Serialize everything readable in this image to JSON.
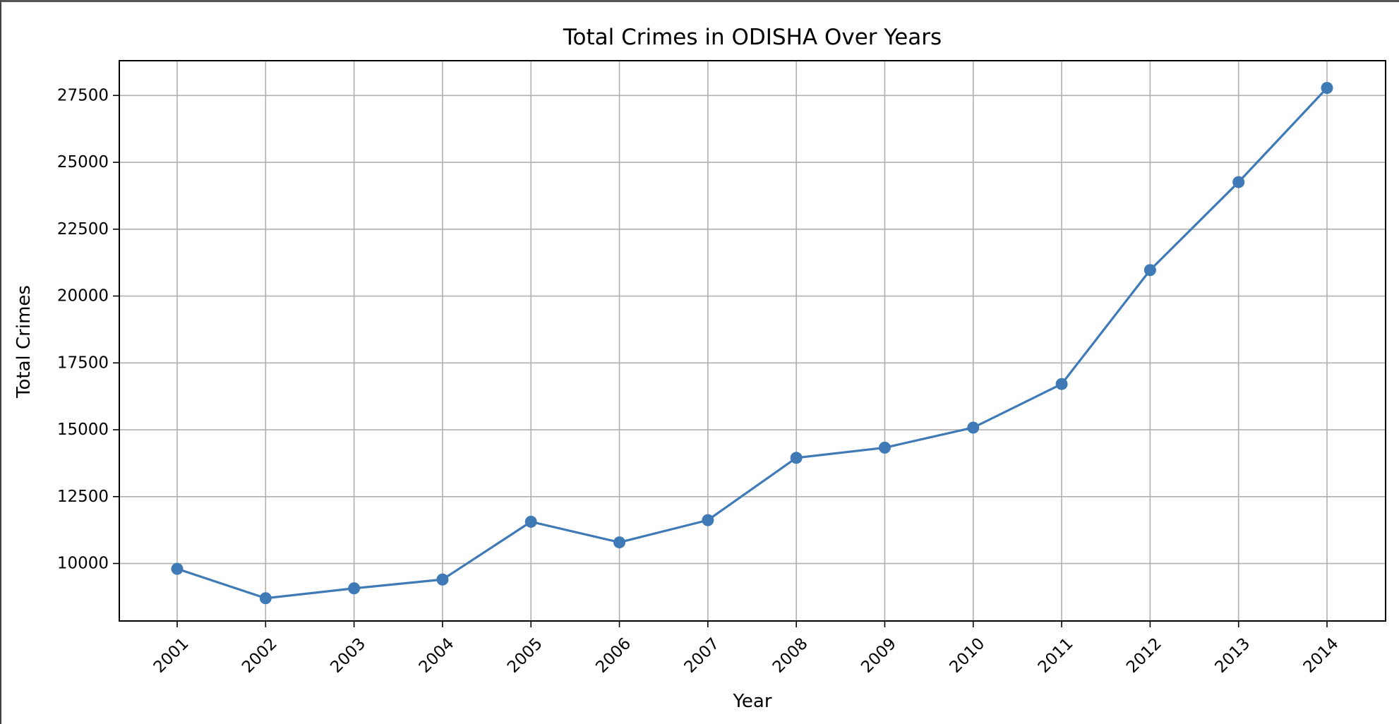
{
  "chart_data": {
    "type": "line",
    "title": "Total Crimes in ODISHA Over Years",
    "xlabel": "Year",
    "ylabel": "Total Crimes",
    "x": [
      "2001",
      "2002",
      "2003",
      "2004",
      "2005",
      "2006",
      "2007",
      "2008",
      "2009",
      "2010",
      "2011",
      "2012",
      "2013",
      "2014"
    ],
    "series": [
      {
        "values": [
          9800,
          8700,
          9070,
          9400,
          11560,
          10790,
          11620,
          13950,
          14330,
          15080,
          16710,
          20970,
          24260,
          27780
        ],
        "color": "#3f7ab7",
        "marker": "circle"
      }
    ],
    "ylim": [
      7850,
      28800
    ],
    "yticks": [
      10000,
      12500,
      15000,
      17500,
      20000,
      22500,
      25000,
      27500
    ],
    "grid": true,
    "x_tick_rotation": 45
  }
}
